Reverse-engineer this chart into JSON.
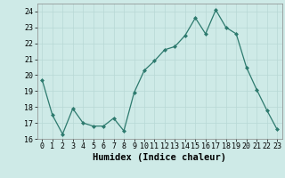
{
  "x": [
    0,
    1,
    2,
    3,
    4,
    5,
    6,
    7,
    8,
    9,
    10,
    11,
    12,
    13,
    14,
    15,
    16,
    17,
    18,
    19,
    20,
    21,
    22,
    23
  ],
  "y": [
    19.7,
    17.5,
    16.3,
    17.9,
    17.0,
    16.8,
    16.8,
    17.3,
    16.5,
    18.9,
    20.3,
    20.9,
    21.6,
    21.8,
    22.5,
    23.6,
    22.6,
    24.1,
    23.0,
    22.6,
    20.5,
    19.1,
    17.8,
    16.6
  ],
  "xlabel": "Humidex (Indice chaleur)",
  "ylim": [
    16,
    24.5
  ],
  "yticks": [
    16,
    17,
    18,
    19,
    20,
    21,
    22,
    23,
    24
  ],
  "xtick_labels": [
    "0",
    "1",
    "2",
    "3",
    "4",
    "5",
    "6",
    "7",
    "8",
    "9",
    "10",
    "11",
    "12",
    "13",
    "14",
    "15",
    "16",
    "17",
    "18",
    "19",
    "20",
    "21",
    "22",
    "23"
  ],
  "line_color": "#2d7a6e",
  "marker_color": "#2d7a6e",
  "bg_color": "#ceeae7",
  "grid_color": "#b8d8d5",
  "xlabel_fontsize": 7.5,
  "tick_fontsize": 6.0
}
